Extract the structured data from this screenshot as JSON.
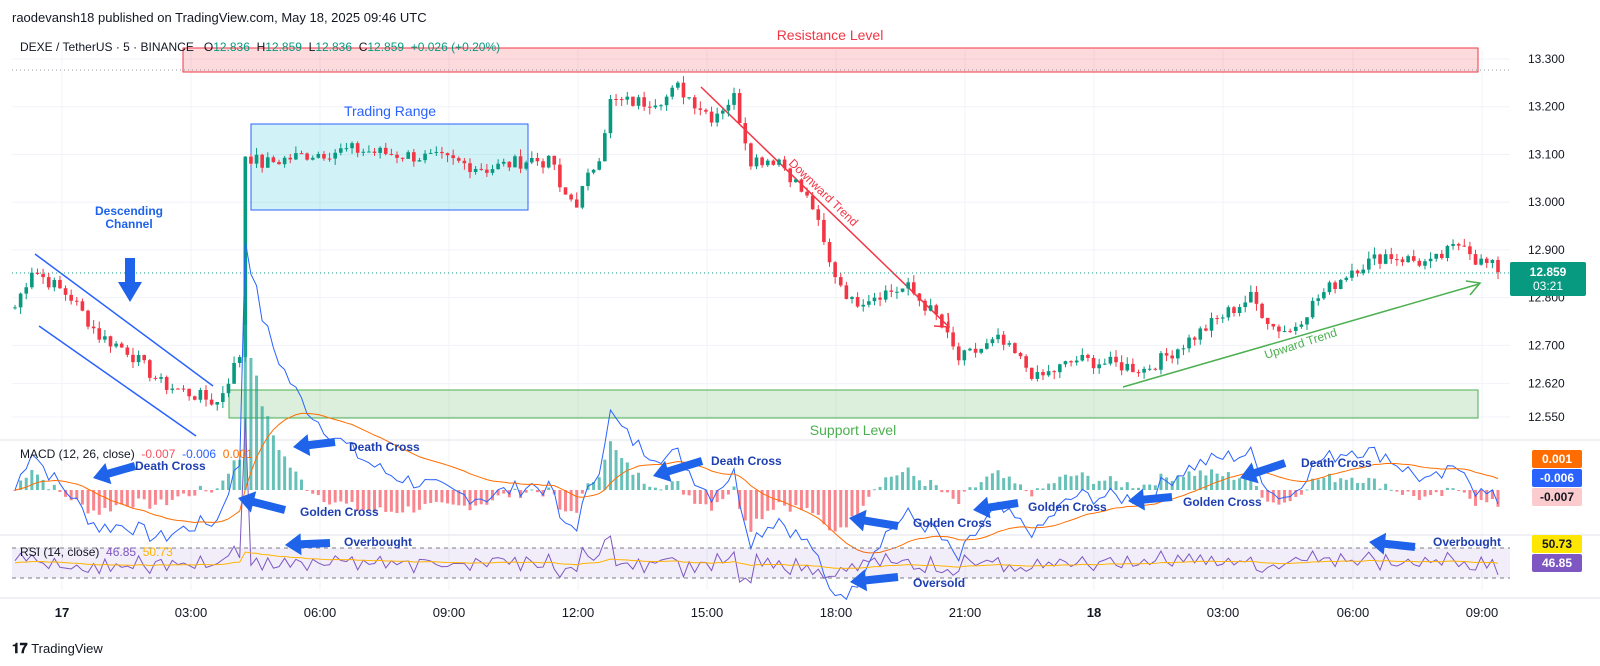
{
  "publisher": "raodevansh18 published on TradingView.com, May 18, 2025 09:46 UTC",
  "symbol": {
    "name": "DEXE / TetherUS · 5 · BINANCE",
    "open_label": "O",
    "open": "12.836",
    "high_label": "H",
    "high": "12.859",
    "low_label": "L",
    "low": "12.836",
    "close_label": "C",
    "close": "12.859",
    "change": "+0.026 (+0.20%)"
  },
  "last_price": {
    "value": "12.859",
    "countdown": "03:21"
  },
  "macd": {
    "label": "MACD (12, 26, close)",
    "v1": "-0.007",
    "v2": "-0.006",
    "v3": "0.001",
    "badges": [
      "0.001",
      "-0.006",
      "-0.007"
    ]
  },
  "rsi": {
    "label": "RSI (14, close)",
    "v1": "46.85",
    "v2": "50.73",
    "badges": [
      "50.73",
      "46.85"
    ]
  },
  "footer": "TradingView",
  "colors": {
    "up": "#089981",
    "down": "#F23645",
    "macd": "#2962FF",
    "signal": "#FF6D00",
    "rsi": "#7E57C2",
    "annotation_blue": "#1E63E9"
  },
  "chart_data": {
    "type": "candlestick",
    "price_axis_ticks": [
      "13.300",
      "13.200",
      "13.100",
      "13.000",
      "12.900",
      "12.800",
      "12.700",
      "12.620",
      "12.550"
    ],
    "price_axis_values": [
      13.3,
      13.2,
      13.1,
      13.0,
      12.9,
      12.8,
      12.7,
      12.62,
      12.55
    ],
    "ylim": [
      12.53,
      13.33
    ],
    "time_axis_ticks": [
      "17",
      "03:00",
      "06:00",
      "09:00",
      "12:00",
      "15:00",
      "18:00",
      "21:00",
      "18",
      "03:00",
      "06:00",
      "09:00"
    ],
    "close_trajectory": [
      [
        0,
        12.78
      ],
      [
        3,
        12.86
      ],
      [
        10,
        12.8
      ],
      [
        15,
        12.72
      ],
      [
        20,
        12.69
      ],
      [
        26,
        12.62
      ],
      [
        31,
        12.6
      ],
      [
        36,
        12.58
      ],
      [
        40,
        12.68
      ],
      [
        41,
        13.1
      ],
      [
        44,
        13.08
      ],
      [
        52,
        13.1
      ],
      [
        60,
        13.11
      ],
      [
        68,
        13.1
      ],
      [
        76,
        13.09
      ],
      [
        84,
        13.07
      ],
      [
        92,
        13.09
      ],
      [
        96,
        13.08
      ],
      [
        97,
        13.02
      ],
      [
        100,
        13.0
      ],
      [
        104,
        13.1
      ],
      [
        106,
        13.21
      ],
      [
        112,
        13.21
      ],
      [
        116,
        13.22
      ],
      [
        118,
        13.24
      ],
      [
        124,
        13.18
      ],
      [
        128,
        13.22
      ],
      [
        131,
        13.09
      ],
      [
        136,
        13.09
      ],
      [
        142,
        12.99
      ],
      [
        145,
        12.87
      ],
      [
        149,
        12.79
      ],
      [
        154,
        12.81
      ],
      [
        159,
        12.82
      ],
      [
        164,
        12.76
      ],
      [
        168,
        12.67
      ],
      [
        175,
        12.71
      ],
      [
        178,
        12.68
      ],
      [
        182,
        12.63
      ],
      [
        189,
        12.67
      ],
      [
        196,
        12.66
      ],
      [
        201,
        12.65
      ],
      [
        204,
        12.67
      ],
      [
        210,
        12.72
      ],
      [
        216,
        12.77
      ],
      [
        220,
        12.8
      ],
      [
        224,
        12.74
      ],
      [
        227,
        12.73
      ],
      [
        232,
        12.8
      ],
      [
        238,
        12.86
      ],
      [
        244,
        12.89
      ],
      [
        252,
        12.87
      ],
      [
        258,
        12.92
      ],
      [
        260,
        12.88
      ],
      [
        264,
        12.86
      ]
    ],
    "series": [
      {
        "name": "MACD (12, 26, close)",
        "last": -0.006
      },
      {
        "name": "Signal",
        "last": -0.007
      },
      {
        "name": "RSI (14, close)",
        "last": 46.85
      },
      {
        "name": "RSI MA",
        "last": 50.73
      }
    ],
    "annotations": {
      "resistance": "Resistance Level",
      "support": "Support Level",
      "trading_range": "Trading Range",
      "descending_channel": "Descending Channel",
      "downward_trend": "Downward Trend",
      "upward_trend": "Upward Trend",
      "death_cross": "Death Cross",
      "golden_cross": "Golden Cross",
      "overbought": "Overbought",
      "oversold": "Oversold"
    }
  }
}
